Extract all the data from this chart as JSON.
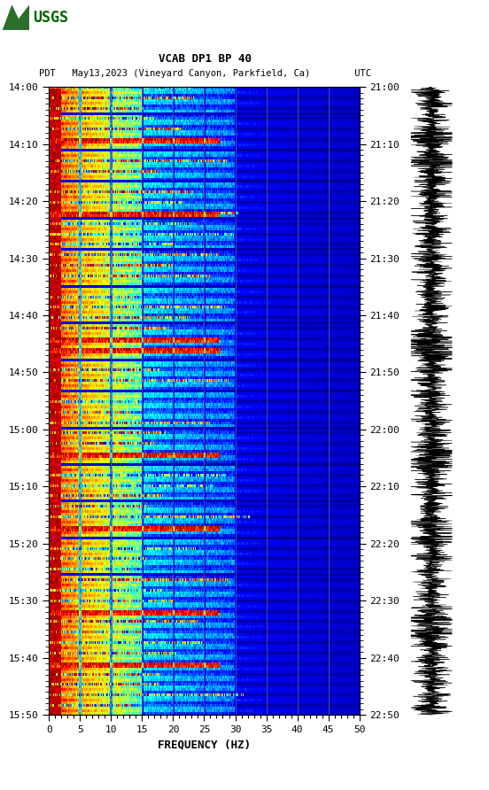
{
  "title_line1": "VCAB DP1 BP 40",
  "title_line2": "PDT   May13,2023 (Vineyard Canyon, Parkfield, Ca)        UTC",
  "xlabel": "FREQUENCY (HZ)",
  "left_yticks": [
    "14:00",
    "14:10",
    "14:20",
    "14:30",
    "14:40",
    "14:50",
    "15:00",
    "15:10",
    "15:20",
    "15:30",
    "15:40",
    "15:50"
  ],
  "right_yticks": [
    "21:00",
    "21:10",
    "21:20",
    "21:30",
    "21:40",
    "21:50",
    "22:00",
    "22:10",
    "22:20",
    "22:30",
    "22:40",
    "22:50"
  ],
  "xticks": [
    0,
    5,
    10,
    15,
    20,
    25,
    30,
    35,
    40,
    45,
    50
  ],
  "freq_min": 0,
  "freq_max": 50,
  "time_steps": 240,
  "freq_steps": 500,
  "background_color": "#ffffff",
  "spectrogram_bg": "#00008B",
  "grid_color": "#808080",
  "grid_alpha": 0.6,
  "font_size": 8,
  "title_font_size": 9,
  "usgs_color": "#006400",
  "cmap_colors": [
    [
      0.0,
      "#00008B"
    ],
    [
      0.18,
      "#0000FF"
    ],
    [
      0.36,
      "#00FFFF"
    ],
    [
      0.52,
      "#FFFF00"
    ],
    [
      0.68,
      "#FF8000"
    ],
    [
      0.82,
      "#FF0000"
    ],
    [
      1.0,
      "#800000"
    ]
  ]
}
